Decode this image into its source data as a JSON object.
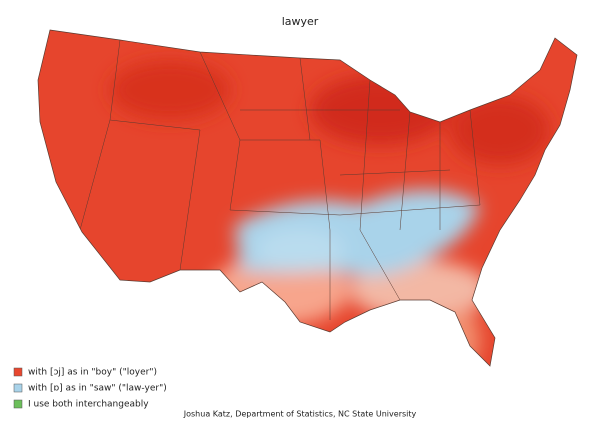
{
  "title": "lawyer",
  "legend": [
    {
      "label": "with [ɔj] as in \"boy\" (\"loyer\")",
      "color": "#e8472f"
    },
    {
      "label": "with [ɒ] as in \"saw\" (\"law-yer\")",
      "color": "#a9d3ea"
    },
    {
      "label": "I use both interchangeably",
      "color": "#6cbf5b"
    }
  ],
  "credit": "Joshua Katz, Department of Statistics, NC State University"
}
